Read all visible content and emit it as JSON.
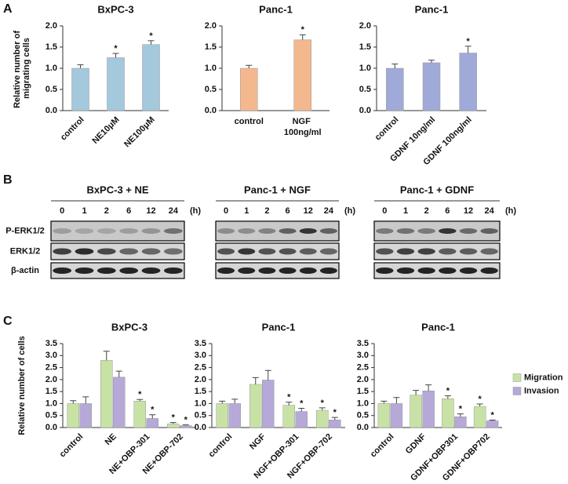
{
  "panel_labels": [
    "A",
    "B",
    "C"
  ],
  "chart_data": [
    {
      "type": "bar",
      "title": "BxPC-3",
      "y_label": "Relative number of migrating cells",
      "categories": [
        "control",
        "NE10μM",
        "NE100μM"
      ],
      "values": [
        1.0,
        1.25,
        1.56
      ],
      "errors": [
        0.08,
        0.1,
        0.09
      ],
      "stars": [
        null,
        "*",
        "*"
      ],
      "color": "#a4c8dc",
      "ylim": [
        0,
        2
      ],
      "yticks": [
        {
          "value": 0,
          "label": "0.0"
        },
        {
          "value": 0.5,
          "label": "0.5"
        },
        {
          "value": 1,
          "label": "1.0"
        },
        {
          "value": 1.5,
          "label": "1.5"
        },
        {
          "value": 2,
          "label": "2.0"
        }
      ]
    },
    {
      "type": "bar",
      "title": "Panc-1",
      "categories": [
        "control",
        "NGF 100ng/ml"
      ],
      "values": [
        1.0,
        1.67
      ],
      "errors": [
        0.07,
        0.12
      ],
      "stars": [
        null,
        "*"
      ],
      "color": "#f3b88e",
      "ylim": [
        0,
        2
      ],
      "yticks": [
        {
          "value": 0,
          "label": "0.0"
        },
        {
          "value": 0.5,
          "label": "0.5"
        },
        {
          "value": 1,
          "label": "1.0"
        },
        {
          "value": 1.5,
          "label": "1.5"
        },
        {
          "value": 2,
          "label": "2.0"
        }
      ]
    },
    {
      "type": "bar",
      "title": "Panc-1",
      "categories": [
        "control",
        "GDNF 10ng/ml",
        "GDNF 100ng/ml"
      ],
      "values": [
        1.0,
        1.13,
        1.36
      ],
      "errors": [
        0.1,
        0.06,
        0.16
      ],
      "stars": [
        null,
        null,
        "*"
      ],
      "color": "#a0aad8",
      "ylim": [
        0,
        2
      ],
      "yticks": [
        {
          "value": 0,
          "label": "0.0"
        },
        {
          "value": 0.5,
          "label": "0.5"
        },
        {
          "value": 1,
          "label": "1.0"
        },
        {
          "value": 1.5,
          "label": "1.5"
        },
        {
          "value": 2,
          "label": "2.0"
        }
      ]
    },
    {
      "type": "bar",
      "title": "BxPC-3",
      "y_label": "Relative number of cells",
      "categories": [
        "control",
        "NE",
        "NE+OBP-301",
        "NE+OBP-702"
      ],
      "series": [
        {
          "color": "#c8e2a6",
          "values": [
            1.0,
            2.8,
            1.1,
            0.15
          ],
          "errors": [
            0.12,
            0.38,
            0.07,
            0.06
          ],
          "stars": [
            null,
            null,
            "*",
            "*"
          ]
        },
        {
          "color": "#b6a9d8",
          "values": [
            1.0,
            2.1,
            0.38,
            0.08
          ],
          "errors": [
            0.28,
            0.25,
            0.15,
            0.03
          ],
          "stars": [
            null,
            null,
            "*",
            "*"
          ]
        }
      ],
      "ylim": [
        0,
        3.5
      ],
      "yticks": [
        {
          "value": 0,
          "label": "0.0"
        },
        {
          "value": 0.5,
          "label": "0.5"
        },
        {
          "value": 1,
          "label": "1.0"
        },
        {
          "value": 1.5,
          "label": "1.5"
        },
        {
          "value": 2,
          "label": "2.0"
        },
        {
          "value": 2.5,
          "label": "2.5"
        },
        {
          "value": 3,
          "label": "3.0"
        },
        {
          "value": 3.5,
          "label": "3.5"
        }
      ]
    },
    {
      "type": "bar",
      "title": "Panc-1",
      "categories": [
        "control",
        "NGF",
        "NGF+OBP-301",
        "NGF+OBP-702"
      ],
      "series": [
        {
          "color": "#c8e2a6",
          "values": [
            1.0,
            1.8,
            0.93,
            0.72
          ],
          "errors": [
            0.1,
            0.28,
            0.13,
            0.1
          ],
          "stars": [
            null,
            null,
            "*",
            "*"
          ]
        },
        {
          "color": "#b6a9d8",
          "values": [
            1.0,
            1.98,
            0.67,
            0.32
          ],
          "errors": [
            0.18,
            0.4,
            0.13,
            0.1
          ],
          "stars": [
            null,
            null,
            "*",
            "*"
          ]
        }
      ],
      "ylim": [
        0,
        3.5
      ],
      "yticks": [
        {
          "value": 0,
          "label": "0.0"
        },
        {
          "value": 0.5,
          "label": "0.5"
        },
        {
          "value": 1,
          "label": "1.0"
        },
        {
          "value": 1.5,
          "label": "1.5"
        },
        {
          "value": 2,
          "label": "2.0"
        },
        {
          "value": 2.5,
          "label": "2.5"
        },
        {
          "value": 3,
          "label": "3.0"
        },
        {
          "value": 3.5,
          "label": "3.5"
        }
      ]
    },
    {
      "type": "bar",
      "title": "Panc-1",
      "legend": "right",
      "categories": [
        "control",
        "GDNF",
        "GDNF+OBP301",
        "GDNF+OBP702"
      ],
      "series": [
        {
          "name": "Migration",
          "color": "#c8e2a6",
          "values": [
            1.0,
            1.35,
            1.2,
            0.88
          ],
          "errors": [
            0.1,
            0.2,
            0.12,
            0.1
          ],
          "stars": [
            null,
            null,
            "*",
            "*"
          ]
        },
        {
          "name": "Invasion",
          "color": "#b6a9d8",
          "values": [
            1.0,
            1.53,
            0.45,
            0.28
          ],
          "errors": [
            0.25,
            0.25,
            0.12,
            0.03
          ],
          "stars": [
            null,
            null,
            "*",
            "*"
          ]
        }
      ],
      "ylim": [
        0,
        3.5
      ],
      "yticks": [
        {
          "value": 0,
          "label": "0.0"
        },
        {
          "value": 0.5,
          "label": "0.5"
        },
        {
          "value": 1,
          "label": "1.0"
        },
        {
          "value": 1.5,
          "label": "1.5"
        },
        {
          "value": 2,
          "label": "2.0"
        },
        {
          "value": 2.5,
          "label": "2.5"
        },
        {
          "value": 3,
          "label": "3.0"
        },
        {
          "value": 3.5,
          "label": "3.5"
        }
      ]
    }
  ],
  "blot": {
    "panels": [
      "BxPC-3 + NE",
      "Panc-1 + NGF",
      "Panc-1 + GDNF"
    ],
    "times": [
      0,
      1,
      2,
      6,
      12,
      24
    ],
    "unit": "(h)",
    "rows": [
      "P-ERK1/2",
      "ERK1/2",
      "β-actin"
    ]
  }
}
